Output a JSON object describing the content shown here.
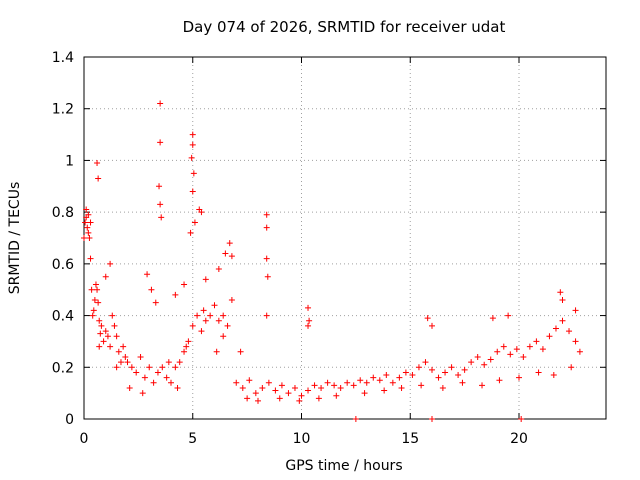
{
  "chart_data": {
    "type": "scatter",
    "title": "Day 074 of 2026, SRMTID for receiver udat",
    "xlabel": "GPS time / hours",
    "ylabel": "SRMTID / TECUs",
    "xlim": [
      0,
      24
    ],
    "ylim": [
      0,
      1.4
    ],
    "xticks": [
      0,
      5,
      10,
      15,
      20
    ],
    "xtick_labels": [
      "0",
      "5",
      "10",
      "15",
      "20"
    ],
    "yticks": [
      0,
      0.2,
      0.4,
      0.6,
      0.8,
      1,
      1.2,
      1.4
    ],
    "ytick_labels": [
      "0",
      "0.2",
      "0.4",
      "0.6",
      "0.8",
      "1",
      "1.2",
      "1.4"
    ],
    "grid": true,
    "marker": "plus",
    "color": "#ff0000",
    "series": [
      {
        "name": "SRMTID",
        "x": [
          0.0,
          0.05,
          0.1,
          0.15,
          0.2,
          0.25,
          0.3,
          0.35,
          0.4,
          0.45,
          0.5,
          0.55,
          0.6,
          0.65,
          0.7,
          0.75,
          0.8,
          0.9,
          1.0,
          1.1,
          1.2,
          1.3,
          1.4,
          1.5,
          1.6,
          1.7,
          1.8,
          1.9,
          2.0,
          2.2,
          2.4,
          2.6,
          2.8,
          3.0,
          3.2,
          3.4,
          3.6,
          3.8,
          4.0,
          4.2,
          4.4,
          4.6,
          4.8,
          5.0,
          5.2,
          5.4,
          5.6,
          5.8,
          6.0,
          6.2,
          6.4,
          6.6,
          6.8,
          7.0,
          7.3,
          7.6,
          7.9,
          8.2,
          8.5,
          8.8,
          9.1,
          9.4,
          9.7,
          10.0,
          10.3,
          10.6,
          10.9,
          11.2,
          11.5,
          11.8,
          12.1,
          12.4,
          12.7,
          13.0,
          13.3,
          13.6,
          13.9,
          14.2,
          14.5,
          14.8,
          15.1,
          15.4,
          15.7,
          16.0,
          16.3,
          16.6,
          16.9,
          17.2,
          17.5,
          17.8,
          18.1,
          18.4,
          18.7,
          19.0,
          19.3,
          19.6,
          19.9,
          20.2,
          20.5,
          20.8,
          21.1,
          21.4,
          21.7,
          22.0,
          22.3,
          22.6,
          22.8,
          0.1,
          0.2,
          0.3,
          0.6,
          0.65,
          3.5,
          3.5,
          3.45,
          3.5,
          3.55,
          5.0,
          5.0,
          4.95,
          5.05,
          5.0,
          4.9,
          5.3,
          5.4,
          5.1,
          6.7,
          6.8,
          8.4,
          8.4,
          8.4,
          8.45,
          8.4,
          10.3,
          10.35,
          10.3,
          1.2,
          1.0,
          2.9,
          3.1,
          3.3,
          4.2,
          4.6,
          5.6,
          6.2,
          6.5,
          7.2,
          15.8,
          16.0,
          18.8,
          21.9,
          22.0,
          22.6,
          19.5,
          12.5,
          16.0,
          20.1,
          0.7,
          1.5,
          2.1,
          2.7,
          3.9,
          4.3,
          4.7,
          5.5,
          6.1,
          6.4,
          7.5,
          8.0,
          9.0,
          9.9,
          10.8,
          11.6,
          12.9,
          13.8,
          14.6,
          15.5,
          16.5,
          17.4,
          18.3,
          19.1,
          20.0,
          20.9,
          21.6,
          22.4
        ],
        "y": [
          0.7,
          0.76,
          0.78,
          0.74,
          0.72,
          0.7,
          0.62,
          0.5,
          0.4,
          0.42,
          0.46,
          0.52,
          0.5,
          0.45,
          0.38,
          0.33,
          0.36,
          0.3,
          0.34,
          0.32,
          0.28,
          0.4,
          0.36,
          0.32,
          0.26,
          0.22,
          0.28,
          0.24,
          0.22,
          0.2,
          0.18,
          0.24,
          0.16,
          0.2,
          0.14,
          0.18,
          0.2,
          0.16,
          0.14,
          0.2,
          0.22,
          0.26,
          0.3,
          0.36,
          0.4,
          0.34,
          0.38,
          0.4,
          0.44,
          0.38,
          0.32,
          0.36,
          0.46,
          0.14,
          0.12,
          0.15,
          0.1,
          0.12,
          0.14,
          0.11,
          0.13,
          0.1,
          0.12,
          0.09,
          0.11,
          0.13,
          0.12,
          0.14,
          0.13,
          0.12,
          0.14,
          0.13,
          0.15,
          0.14,
          0.16,
          0.15,
          0.17,
          0.14,
          0.16,
          0.18,
          0.17,
          0.2,
          0.22,
          0.19,
          0.16,
          0.18,
          0.2,
          0.17,
          0.19,
          0.22,
          0.24,
          0.21,
          0.23,
          0.26,
          0.28,
          0.25,
          0.27,
          0.24,
          0.28,
          0.3,
          0.27,
          0.32,
          0.35,
          0.38,
          0.34,
          0.3,
          0.26,
          0.81,
          0.79,
          0.76,
          0.99,
          0.93,
          1.22,
          1.07,
          0.9,
          0.83,
          0.78,
          1.1,
          1.06,
          1.01,
          0.95,
          0.88,
          0.72,
          0.81,
          0.8,
          0.76,
          0.68,
          0.63,
          0.79,
          0.74,
          0.62,
          0.55,
          0.4,
          0.43,
          0.38,
          0.36,
          0.6,
          0.55,
          0.56,
          0.5,
          0.45,
          0.48,
          0.52,
          0.54,
          0.58,
          0.64,
          0.26,
          0.39,
          0.36,
          0.39,
          0.49,
          0.46,
          0.42,
          0.4,
          0.0,
          0.0,
          0.0,
          0.28,
          0.2,
          0.12,
          0.1,
          0.22,
          0.12,
          0.28,
          0.42,
          0.26,
          0.4,
          0.08,
          0.07,
          0.08,
          0.07,
          0.08,
          0.09,
          0.1,
          0.11,
          0.12,
          0.13,
          0.12,
          0.14,
          0.13,
          0.15,
          0.16,
          0.18,
          0.17,
          0.2
        ]
      }
    ]
  }
}
